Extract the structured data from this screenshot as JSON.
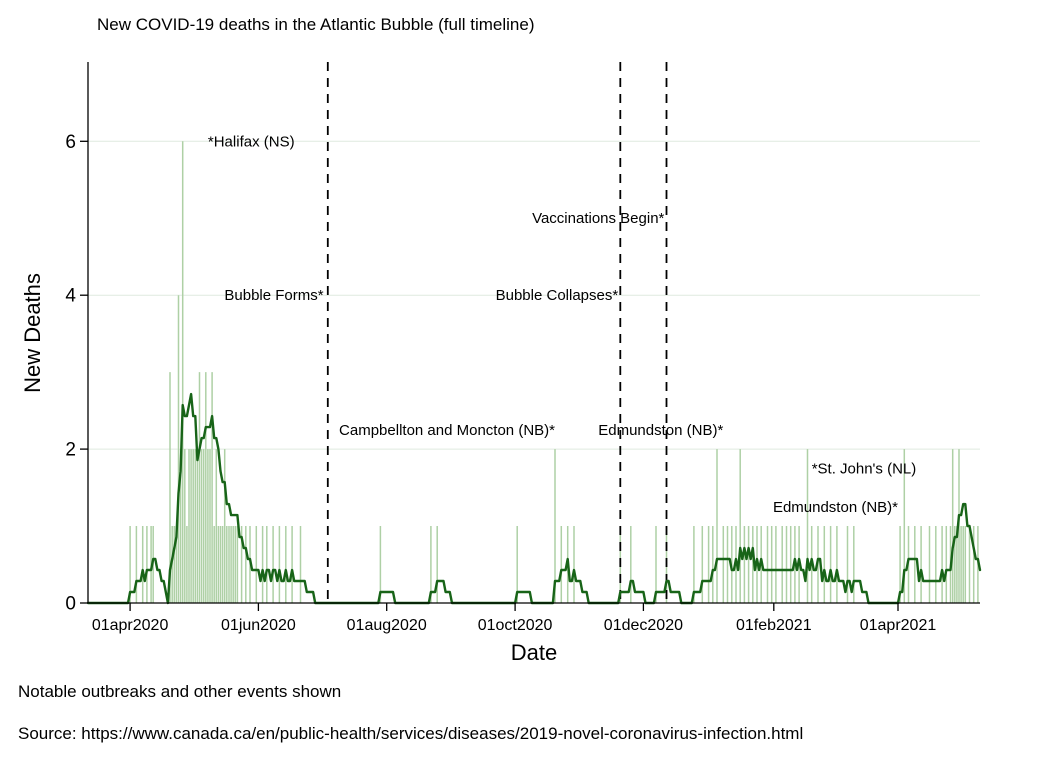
{
  "page": {
    "background": "#ffffff"
  },
  "chart_data": {
    "type": "bar+line",
    "title": "New COVID-19 deaths in the Atlantic Bubble (full timeline)",
    "xlabel": "Date",
    "ylabel": "New Deaths",
    "x_domain": {
      "start": "12mar2020",
      "end": "09may2021"
    },
    "days_total": 424,
    "ylim": [
      0,
      7.03
    ],
    "y_ticks": [
      0,
      2,
      4,
      6
    ],
    "x_ticks": [
      {
        "day": 20,
        "label": "01apr2020"
      },
      {
        "day": 81,
        "label": "01jun2020"
      },
      {
        "day": 142,
        "label": "01aug2020"
      },
      {
        "day": 203,
        "label": "01oct2020"
      },
      {
        "day": 264,
        "label": "01dec2020"
      },
      {
        "day": 326,
        "label": "01feb2021"
      },
      {
        "day": 385,
        "label": "01apr2021"
      }
    ],
    "bars": {
      "name": "Daily new deaths",
      "points": [
        [
          20,
          1
        ],
        [
          23,
          1
        ],
        [
          26,
          1
        ],
        [
          28,
          1
        ],
        [
          30,
          1
        ],
        [
          31,
          1
        ],
        [
          39,
          3
        ],
        [
          40,
          1
        ],
        [
          41,
          1
        ],
        [
          42,
          1
        ],
        [
          43,
          4
        ],
        [
          44,
          2
        ],
        [
          45,
          6
        ],
        [
          46,
          2
        ],
        [
          47,
          1
        ],
        [
          48,
          2
        ],
        [
          49,
          2
        ],
        [
          50,
          2
        ],
        [
          51,
          2
        ],
        [
          52,
          2
        ],
        [
          53,
          3
        ],
        [
          54,
          2
        ],
        [
          55,
          2
        ],
        [
          56,
          3
        ],
        [
          57,
          2
        ],
        [
          58,
          2
        ],
        [
          59,
          3
        ],
        [
          60,
          1
        ],
        [
          61,
          2
        ],
        [
          62,
          1
        ],
        [
          63,
          1
        ],
        [
          64,
          1
        ],
        [
          65,
          2
        ],
        [
          66,
          1
        ],
        [
          67,
          1
        ],
        [
          68,
          1
        ],
        [
          69,
          1
        ],
        [
          70,
          1
        ],
        [
          71,
          1
        ],
        [
          73,
          1
        ],
        [
          75,
          1
        ],
        [
          77,
          1
        ],
        [
          80,
          1
        ],
        [
          83,
          1
        ],
        [
          85,
          1
        ],
        [
          88,
          1
        ],
        [
          91,
          1
        ],
        [
          94,
          1
        ],
        [
          97,
          1
        ],
        [
          101,
          1
        ],
        [
          139,
          1
        ],
        [
          163,
          1
        ],
        [
          166,
          1
        ],
        [
          204,
          1
        ],
        [
          222,
          2
        ],
        [
          225,
          1
        ],
        [
          228,
          1
        ],
        [
          231,
          1
        ],
        [
          253,
          1
        ],
        [
          258,
          1
        ],
        [
          270,
          1
        ],
        [
          275,
          1
        ],
        [
          288,
          1
        ],
        [
          292,
          1
        ],
        [
          295,
          1
        ],
        [
          297,
          1
        ],
        [
          299,
          2
        ],
        [
          302,
          1
        ],
        [
          304,
          1
        ],
        [
          306,
          1
        ],
        [
          308,
          1
        ],
        [
          310,
          2
        ],
        [
          312,
          1
        ],
        [
          314,
          1
        ],
        [
          316,
          1
        ],
        [
          318,
          1
        ],
        [
          320,
          1
        ],
        [
          323,
          1
        ],
        [
          325,
          1
        ],
        [
          327,
          1
        ],
        [
          330,
          1
        ],
        [
          332,
          1
        ],
        [
          334,
          1
        ],
        [
          336,
          1
        ],
        [
          338,
          1
        ],
        [
          342,
          2
        ],
        [
          344,
          1
        ],
        [
          347,
          1
        ],
        [
          350,
          1
        ],
        [
          353,
          1
        ],
        [
          356,
          1
        ],
        [
          361,
          1
        ],
        [
          364,
          1
        ],
        [
          386,
          1
        ],
        [
          388,
          2
        ],
        [
          390,
          1
        ],
        [
          393,
          1
        ],
        [
          396,
          1
        ],
        [
          400,
          1
        ],
        [
          403,
          1
        ],
        [
          406,
          1
        ],
        [
          408,
          1
        ],
        [
          410,
          1
        ],
        [
          411,
          2
        ],
        [
          412,
          1
        ],
        [
          413,
          1
        ],
        [
          414,
          2
        ],
        [
          415,
          1
        ],
        [
          416,
          1
        ],
        [
          417,
          1
        ],
        [
          419,
          1
        ],
        [
          421,
          1
        ],
        [
          423,
          1
        ]
      ]
    },
    "line": {
      "name": "7-day moving average",
      "window": 7,
      "derived_from": "bars"
    },
    "events": [
      {
        "name": "bubble-forms",
        "day": 114
      },
      {
        "name": "bubble-collapses",
        "day": 253
      },
      {
        "name": "vaccinations-begin",
        "day": 275
      }
    ],
    "annotations": [
      {
        "text": "*Halifax (NS)",
        "day": 57,
        "value": 6,
        "anchor": "start"
      },
      {
        "text": "Bubble Forms*",
        "day": 112,
        "value": 4,
        "anchor": "end"
      },
      {
        "text": "Campbellton and Moncton (NB)*",
        "day": 222,
        "value": 2.25,
        "anchor": "end"
      },
      {
        "text": "Bubble Collapses*",
        "day": 252,
        "value": 4,
        "anchor": "end"
      },
      {
        "text": "Vaccinations Begin*",
        "day": 274,
        "value": 5,
        "anchor": "end"
      },
      {
        "text": "Edmundston (NB)*",
        "day": 302,
        "value": 2.25,
        "anchor": "end"
      },
      {
        "text": "*St. John's (NL)",
        "day": 344,
        "value": 1.75,
        "anchor": "start"
      },
      {
        "text": "Edmundston (NB)*",
        "day": 385,
        "value": 1.25,
        "anchor": "end"
      }
    ],
    "colors": {
      "bar": "#aed0a5",
      "line": "#186418",
      "grid": "#dfeadf",
      "axis": "#000000",
      "event_line": "#000000",
      "text": "#000000"
    }
  },
  "notes": {
    "events_note": "Notable outbreaks and other events shown",
    "source": "Source: https://www.canada.ca/en/public-health/services/diseases/2019-novel-coronavirus-infection.html"
  }
}
